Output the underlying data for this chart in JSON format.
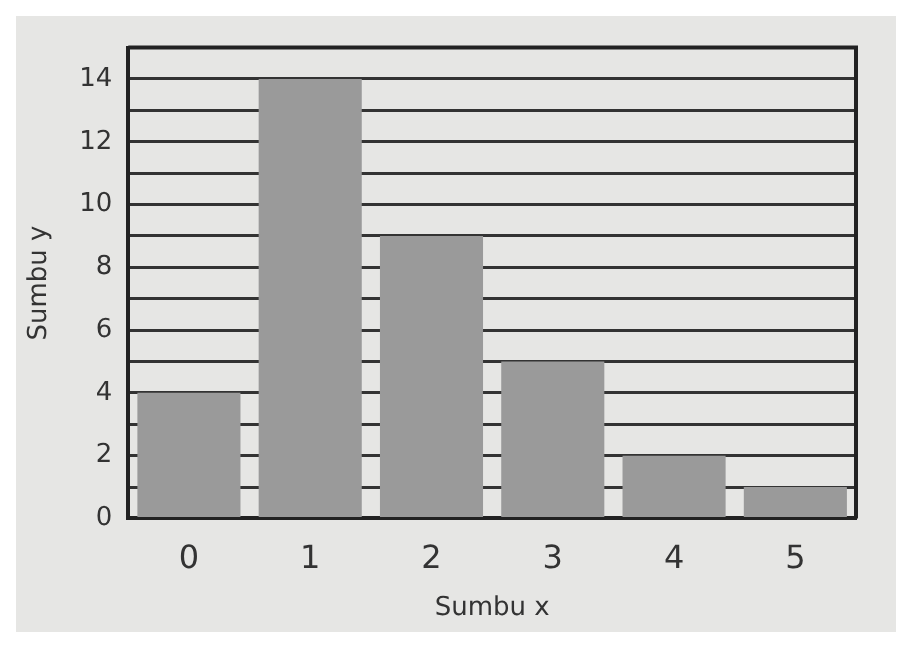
{
  "chart_data": {
    "type": "bar",
    "xlabel": "Sumbu x",
    "ylabel": "Sumbu y",
    "categories": [
      "0",
      "1",
      "2",
      "3",
      "4",
      "5"
    ],
    "values": [
      4,
      14,
      9,
      5,
      2,
      1
    ],
    "color": "#9a9a9a",
    "ylim": [
      0,
      15
    ],
    "yticks": [
      0,
      {
        "value": 1,
        "label": null
      },
      2,
      {
        "value": 3,
        "label": null
      },
      4,
      {
        "value": 5,
        "label": null
      },
      6,
      {
        "value": 7,
        "label": null
      },
      8,
      {
        "value": 9,
        "label": null
      },
      10,
      {
        "value": 11,
        "label": null
      },
      12,
      {
        "value": 13,
        "label": null
      },
      14,
      {
        "value": 15,
        "label": null
      }
    ],
    "grid": "y",
    "legend": false
  }
}
